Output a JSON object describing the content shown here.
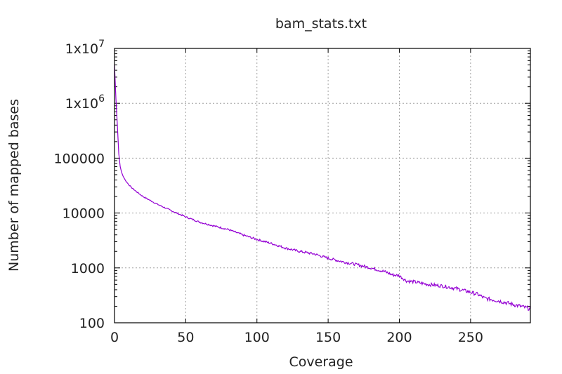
{
  "chart_data": {
    "type": "line",
    "title": "bam_stats.txt",
    "xlabel": "Coverage",
    "ylabel": "Number of mapped bases",
    "xlim": [
      0,
      292
    ],
    "ylim": [
      100,
      10000000
    ],
    "yscale": "log",
    "grid": true,
    "line_color": "#9400d3",
    "x_ticks": [
      0,
      50,
      100,
      150,
      200,
      250
    ],
    "y_ticks": [
      {
        "value": 100,
        "base": "100",
        "exp": ""
      },
      {
        "value": 1000,
        "base": "1000",
        "exp": ""
      },
      {
        "value": 10000,
        "base": "10000",
        "exp": ""
      },
      {
        "value": 100000,
        "base": "100000",
        "exp": ""
      },
      {
        "value": 1000000,
        "base": "1x10",
        "exp": "6"
      },
      {
        "value": 10000000,
        "base": "1x10",
        "exp": "7"
      }
    ],
    "series": [
      {
        "x": [
          0,
          1,
          2,
          3,
          4,
          5,
          6,
          8,
          10,
          12,
          15,
          20,
          25,
          30,
          40,
          50,
          60,
          70,
          80,
          90,
          100,
          110,
          120,
          130,
          140,
          150,
          160,
          170,
          180,
          190,
          195,
          200,
          205,
          210,
          220,
          230,
          240,
          250,
          255,
          260,
          270,
          280,
          285,
          290,
          292
        ],
        "y": [
          5000000,
          1200000,
          400000,
          120000,
          70000,
          55000,
          47000,
          38000,
          33000,
          29000,
          25000,
          20000,
          17000,
          14500,
          11000,
          8500,
          6800,
          5800,
          5000,
          4000,
          3300,
          2800,
          2300,
          2000,
          1800,
          1500,
          1300,
          1150,
          1000,
          850,
          750,
          720,
          580,
          560,
          500,
          470,
          420,
          360,
          330,
          280,
          250,
          215,
          200,
          185,
          180
        ]
      }
    ]
  }
}
